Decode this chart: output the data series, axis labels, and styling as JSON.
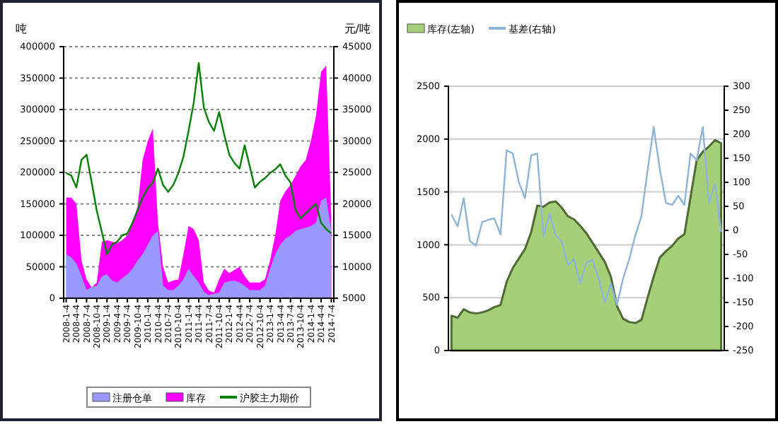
{
  "chart_data": [
    {
      "type": "area",
      "ylabel": "吨",
      "y2label": "元/吨",
      "ylim": [
        0,
        400000
      ],
      "yticks": [
        0,
        50000,
        100000,
        150000,
        200000,
        250000,
        300000,
        350000,
        400000
      ],
      "y2lim": [
        5000,
        45000
      ],
      "y2ticks": [
        5000,
        10000,
        15000,
        20000,
        25000,
        30000,
        35000,
        40000,
        45000
      ],
      "grid": "y",
      "legend": "bottom",
      "categories": [
        "2008-1-4",
        null,
        "2008-4-4",
        null,
        "2008-7-4",
        null,
        "2008-10-4",
        null,
        "2009-1-4",
        null,
        "2009-4-4",
        null,
        "2009-7-4",
        null,
        "2009-10-4",
        null,
        "2010-1-4",
        null,
        "2010-4-4",
        null,
        "2010-7-4",
        null,
        "2010-10-4",
        null,
        "2011-1-4",
        null,
        "2011-4-4",
        null,
        "2011-7-4",
        null,
        "2011-10-4",
        null,
        "2012-1-4",
        null,
        "2012-4-4",
        null,
        "2012-7-4",
        null,
        "2012-10-4",
        null,
        "2013-1-4",
        null,
        "2013-4-4",
        null,
        "2013-7-4",
        null,
        "2013-10-4",
        null,
        "2014-1-4",
        null,
        "2014-4-4",
        null,
        "2014-7-4"
      ],
      "series": [
        {
          "name": "注册仓单",
          "color": "#9999ff",
          "values": [
            70000,
            65000,
            55000,
            35000,
            13000,
            18000,
            20000,
            35000,
            38000,
            28000,
            25000,
            32000,
            38000,
            47000,
            60000,
            70000,
            85000,
            100000,
            107000,
            20000,
            13000,
            13000,
            20000,
            30000,
            47000,
            35000,
            25000,
            10000,
            5000,
            7000,
            9000,
            25000,
            27000,
            28000,
            25000,
            20000,
            13000,
            13000,
            13000,
            20000,
            47000,
            70000,
            85000,
            95000,
            100000,
            107000,
            110000,
            112000,
            115000,
            120000,
            155000,
            160000,
            107000
          ]
        },
        {
          "name": "库存",
          "color": "#ff00ff",
          "values": [
            160000,
            160000,
            150000,
            60000,
            30000,
            17000,
            25000,
            90000,
            92000,
            90000,
            88000,
            92000,
            100000,
            120000,
            145000,
            220000,
            250000,
            270000,
            120000,
            50000,
            25000,
            28000,
            30000,
            70000,
            115000,
            110000,
            92000,
            25000,
            12000,
            9000,
            30000,
            47000,
            40000,
            45000,
            50000,
            35000,
            25000,
            25000,
            25000,
            30000,
            60000,
            100000,
            155000,
            170000,
            180000,
            195000,
            210000,
            220000,
            250000,
            290000,
            360000,
            370000,
            130000
          ]
        },
        {
          "name": "沪胶主力期价",
          "type": "line",
          "axis": "y2",
          "color": "#008000",
          "values": [
            24900,
            24500,
            22600,
            27000,
            27800,
            23400,
            18900,
            15500,
            12000,
            13500,
            14000,
            15000,
            15300,
            17000,
            19000,
            21000,
            22500,
            23400,
            25600,
            23000,
            21900,
            23000,
            24900,
            27500,
            31600,
            36000,
            42400,
            35300,
            33000,
            31600,
            34600,
            31000,
            27800,
            26500,
            25600,
            29300,
            26000,
            22600,
            23500,
            24100,
            24900,
            25500,
            26300,
            24500,
            23400,
            19000,
            17700,
            18500,
            19300,
            20000,
            17000,
            16000,
            15300
          ]
        }
      ]
    },
    {
      "type": "area",
      "ylim": [
        0,
        2500
      ],
      "yticks": [
        0,
        500,
        1000,
        1500,
        2000,
        2500
      ],
      "y2lim": [
        -250,
        300
      ],
      "y2ticks": [
        -250,
        -200,
        -150,
        -100,
        -50,
        0,
        50,
        100,
        150,
        200,
        250,
        300
      ],
      "grid": "y",
      "legend": "top left",
      "categories": [
        null,
        null,
        null,
        null,
        null,
        null,
        null,
        null,
        null,
        null,
        null,
        null,
        null,
        null,
        null,
        null,
        null,
        null,
        null,
        null,
        null,
        null,
        null,
        null,
        null,
        null,
        null,
        null,
        null,
        null,
        null,
        null,
        null,
        null,
        null,
        null,
        null,
        null,
        null,
        null,
        null,
        null,
        null,
        null,
        null
      ],
      "series": [
        {
          "name": "库存(左轴)",
          "color": "#a6cf7a",
          "values": [
            330,
            310,
            390,
            360,
            350,
            360,
            380,
            410,
            430,
            650,
            780,
            870,
            960,
            1120,
            1370,
            1360,
            1400,
            1410,
            1350,
            1270,
            1240,
            1180,
            1110,
            1020,
            930,
            840,
            700,
            420,
            300,
            270,
            260,
            290,
            500,
            700,
            880,
            940,
            990,
            1060,
            1100,
            1450,
            1800,
            1880,
            1930,
            1990,
            1960
          ]
        },
        {
          "name": "基差(右轴)",
          "type": "line",
          "axis": "y2",
          "color": "#8fb4d6",
          "values": [
            33,
            8,
            67,
            -22,
            -32,
            17,
            22,
            25,
            -9,
            167,
            160,
            100,
            67,
            156,
            160,
            -13,
            35,
            -10,
            -23,
            -72,
            -60,
            -111,
            -67,
            -62,
            -100,
            -150,
            -111,
            -155,
            -100,
            -60,
            -10,
            30,
            126,
            215,
            126,
            57,
            53,
            72,
            53,
            160,
            146,
            215,
            57,
            97,
            -4
          ]
        }
      ]
    }
  ]
}
